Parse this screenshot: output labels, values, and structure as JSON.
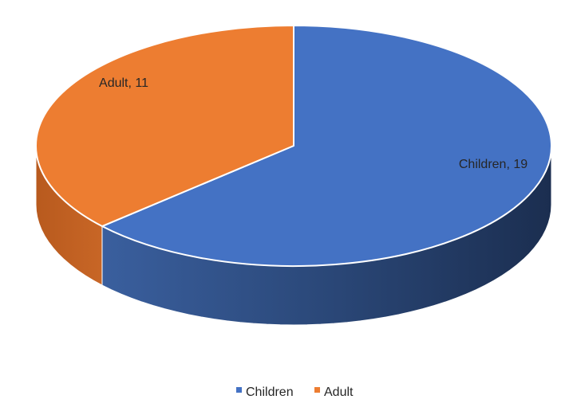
{
  "chart_data": {
    "type": "pie",
    "title": "",
    "style": "3d",
    "categories": [
      "Children",
      "Adult"
    ],
    "values": [
      19,
      11
    ],
    "data_labels": [
      "Children, 19",
      "Adult, 11"
    ],
    "colors": [
      "#4472C4",
      "#ED7D31"
    ],
    "start_angle_deg": 0,
    "direction": "clockwise",
    "legend": {
      "position": "bottom",
      "entries": [
        "Children",
        "Adult"
      ]
    }
  }
}
